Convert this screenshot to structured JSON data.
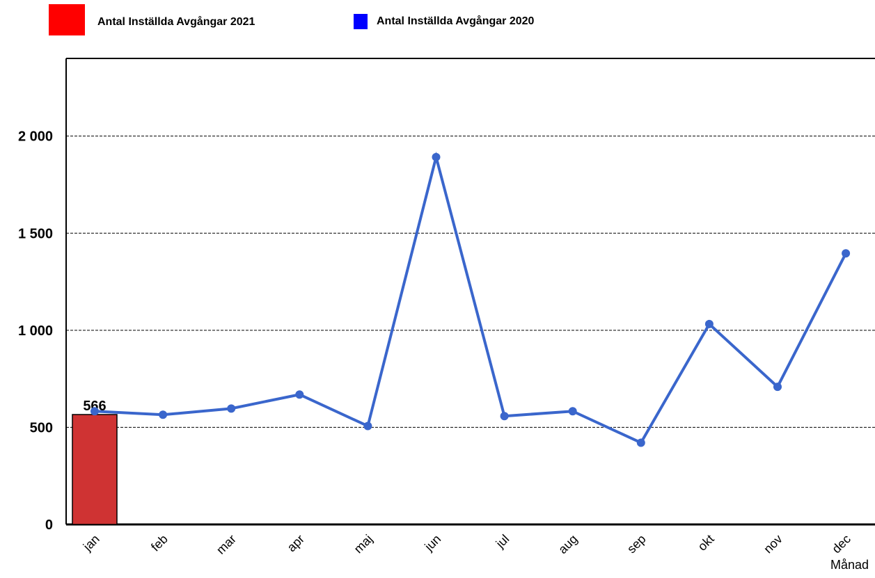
{
  "chart_data": {
    "type": "bar+line",
    "x_label": "Månad",
    "categories": [
      "jan",
      "feb",
      "mar",
      "apr",
      "maj",
      "jun",
      "jul",
      "aug",
      "sep",
      "okt",
      "nov",
      "dec"
    ],
    "series": [
      {
        "name": "Antal Inställda Avgångar 2021",
        "type": "bar",
        "color": "#cf3333",
        "legend_color": "#ff0000",
        "values": [
          566,
          null,
          null,
          null,
          null,
          null,
          null,
          null,
          null,
          null,
          null,
          null
        ]
      },
      {
        "name": "Antal Inställda Avgångar 2020",
        "type": "line",
        "color": "#3a66cc",
        "legend_color": "#0000ff",
        "values": [
          583,
          565,
          597,
          669,
          507,
          1892,
          558,
          583,
          421,
          1032,
          709,
          1396
        ]
      }
    ],
    "ylim": [
      0,
      2400
    ],
    "yticks": [
      0,
      500,
      {
        "value": 1000,
        "label": "1 000"
      },
      {
        "value": 1500,
        "label": "1 500"
      },
      {
        "value": 2000,
        "label": "2 000"
      }
    ],
    "grid": true
  }
}
